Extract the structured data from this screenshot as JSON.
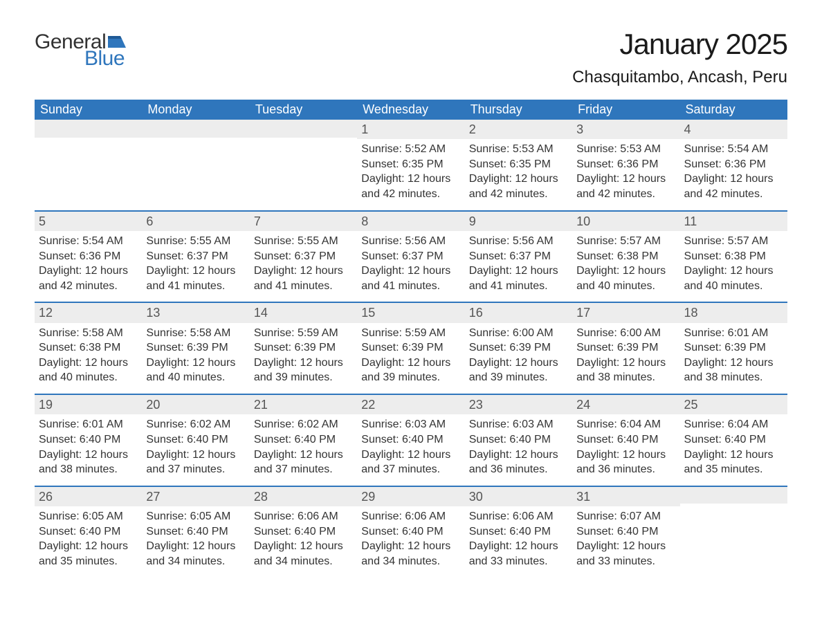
{
  "logo": {
    "text1": "General",
    "text2": "Blue"
  },
  "title": "January 2025",
  "location": "Chasquitambo, Ancash, Peru",
  "colors": {
    "header_bg": "#2f76bc",
    "header_text": "#ffffff",
    "daynum_bg": "#ededed",
    "daynum_text": "#555555",
    "border_top": "#2f76bc",
    "body_text": "#333333"
  },
  "weekdays": [
    "Sunday",
    "Monday",
    "Tuesday",
    "Wednesday",
    "Thursday",
    "Friday",
    "Saturday"
  ],
  "weeks": [
    [
      {
        "blank": true
      },
      {
        "blank": true
      },
      {
        "blank": true
      },
      {
        "day": "1",
        "sunrise": "Sunrise: 5:52 AM",
        "sunset": "Sunset: 6:35 PM",
        "day1": "Daylight: 12 hours",
        "day2": "and 42 minutes."
      },
      {
        "day": "2",
        "sunrise": "Sunrise: 5:53 AM",
        "sunset": "Sunset: 6:35 PM",
        "day1": "Daylight: 12 hours",
        "day2": "and 42 minutes."
      },
      {
        "day": "3",
        "sunrise": "Sunrise: 5:53 AM",
        "sunset": "Sunset: 6:36 PM",
        "day1": "Daylight: 12 hours",
        "day2": "and 42 minutes."
      },
      {
        "day": "4",
        "sunrise": "Sunrise: 5:54 AM",
        "sunset": "Sunset: 6:36 PM",
        "day1": "Daylight: 12 hours",
        "day2": "and 42 minutes."
      }
    ],
    [
      {
        "day": "5",
        "sunrise": "Sunrise: 5:54 AM",
        "sunset": "Sunset: 6:36 PM",
        "day1": "Daylight: 12 hours",
        "day2": "and 42 minutes."
      },
      {
        "day": "6",
        "sunrise": "Sunrise: 5:55 AM",
        "sunset": "Sunset: 6:37 PM",
        "day1": "Daylight: 12 hours",
        "day2": "and 41 minutes."
      },
      {
        "day": "7",
        "sunrise": "Sunrise: 5:55 AM",
        "sunset": "Sunset: 6:37 PM",
        "day1": "Daylight: 12 hours",
        "day2": "and 41 minutes."
      },
      {
        "day": "8",
        "sunrise": "Sunrise: 5:56 AM",
        "sunset": "Sunset: 6:37 PM",
        "day1": "Daylight: 12 hours",
        "day2": "and 41 minutes."
      },
      {
        "day": "9",
        "sunrise": "Sunrise: 5:56 AM",
        "sunset": "Sunset: 6:37 PM",
        "day1": "Daylight: 12 hours",
        "day2": "and 41 minutes."
      },
      {
        "day": "10",
        "sunrise": "Sunrise: 5:57 AM",
        "sunset": "Sunset: 6:38 PM",
        "day1": "Daylight: 12 hours",
        "day2": "and 40 minutes."
      },
      {
        "day": "11",
        "sunrise": "Sunrise: 5:57 AM",
        "sunset": "Sunset: 6:38 PM",
        "day1": "Daylight: 12 hours",
        "day2": "and 40 minutes."
      }
    ],
    [
      {
        "day": "12",
        "sunrise": "Sunrise: 5:58 AM",
        "sunset": "Sunset: 6:38 PM",
        "day1": "Daylight: 12 hours",
        "day2": "and 40 minutes."
      },
      {
        "day": "13",
        "sunrise": "Sunrise: 5:58 AM",
        "sunset": "Sunset: 6:39 PM",
        "day1": "Daylight: 12 hours",
        "day2": "and 40 minutes."
      },
      {
        "day": "14",
        "sunrise": "Sunrise: 5:59 AM",
        "sunset": "Sunset: 6:39 PM",
        "day1": "Daylight: 12 hours",
        "day2": "and 39 minutes."
      },
      {
        "day": "15",
        "sunrise": "Sunrise: 5:59 AM",
        "sunset": "Sunset: 6:39 PM",
        "day1": "Daylight: 12 hours",
        "day2": "and 39 minutes."
      },
      {
        "day": "16",
        "sunrise": "Sunrise: 6:00 AM",
        "sunset": "Sunset: 6:39 PM",
        "day1": "Daylight: 12 hours",
        "day2": "and 39 minutes."
      },
      {
        "day": "17",
        "sunrise": "Sunrise: 6:00 AM",
        "sunset": "Sunset: 6:39 PM",
        "day1": "Daylight: 12 hours",
        "day2": "and 38 minutes."
      },
      {
        "day": "18",
        "sunrise": "Sunrise: 6:01 AM",
        "sunset": "Sunset: 6:39 PM",
        "day1": "Daylight: 12 hours",
        "day2": "and 38 minutes."
      }
    ],
    [
      {
        "day": "19",
        "sunrise": "Sunrise: 6:01 AM",
        "sunset": "Sunset: 6:40 PM",
        "day1": "Daylight: 12 hours",
        "day2": "and 38 minutes."
      },
      {
        "day": "20",
        "sunrise": "Sunrise: 6:02 AM",
        "sunset": "Sunset: 6:40 PM",
        "day1": "Daylight: 12 hours",
        "day2": "and 37 minutes."
      },
      {
        "day": "21",
        "sunrise": "Sunrise: 6:02 AM",
        "sunset": "Sunset: 6:40 PM",
        "day1": "Daylight: 12 hours",
        "day2": "and 37 minutes."
      },
      {
        "day": "22",
        "sunrise": "Sunrise: 6:03 AM",
        "sunset": "Sunset: 6:40 PM",
        "day1": "Daylight: 12 hours",
        "day2": "and 37 minutes."
      },
      {
        "day": "23",
        "sunrise": "Sunrise: 6:03 AM",
        "sunset": "Sunset: 6:40 PM",
        "day1": "Daylight: 12 hours",
        "day2": "and 36 minutes."
      },
      {
        "day": "24",
        "sunrise": "Sunrise: 6:04 AM",
        "sunset": "Sunset: 6:40 PM",
        "day1": "Daylight: 12 hours",
        "day2": "and 36 minutes."
      },
      {
        "day": "25",
        "sunrise": "Sunrise: 6:04 AM",
        "sunset": "Sunset: 6:40 PM",
        "day1": "Daylight: 12 hours",
        "day2": "and 35 minutes."
      }
    ],
    [
      {
        "day": "26",
        "sunrise": "Sunrise: 6:05 AM",
        "sunset": "Sunset: 6:40 PM",
        "day1": "Daylight: 12 hours",
        "day2": "and 35 minutes."
      },
      {
        "day": "27",
        "sunrise": "Sunrise: 6:05 AM",
        "sunset": "Sunset: 6:40 PM",
        "day1": "Daylight: 12 hours",
        "day2": "and 34 minutes."
      },
      {
        "day": "28",
        "sunrise": "Sunrise: 6:06 AM",
        "sunset": "Sunset: 6:40 PM",
        "day1": "Daylight: 12 hours",
        "day2": "and 34 minutes."
      },
      {
        "day": "29",
        "sunrise": "Sunrise: 6:06 AM",
        "sunset": "Sunset: 6:40 PM",
        "day1": "Daylight: 12 hours",
        "day2": "and 34 minutes."
      },
      {
        "day": "30",
        "sunrise": "Sunrise: 6:06 AM",
        "sunset": "Sunset: 6:40 PM",
        "day1": "Daylight: 12 hours",
        "day2": "and 33 minutes."
      },
      {
        "day": "31",
        "sunrise": "Sunrise: 6:07 AM",
        "sunset": "Sunset: 6:40 PM",
        "day1": "Daylight: 12 hours",
        "day2": "and 33 minutes."
      },
      {
        "blank": true
      }
    ]
  ]
}
